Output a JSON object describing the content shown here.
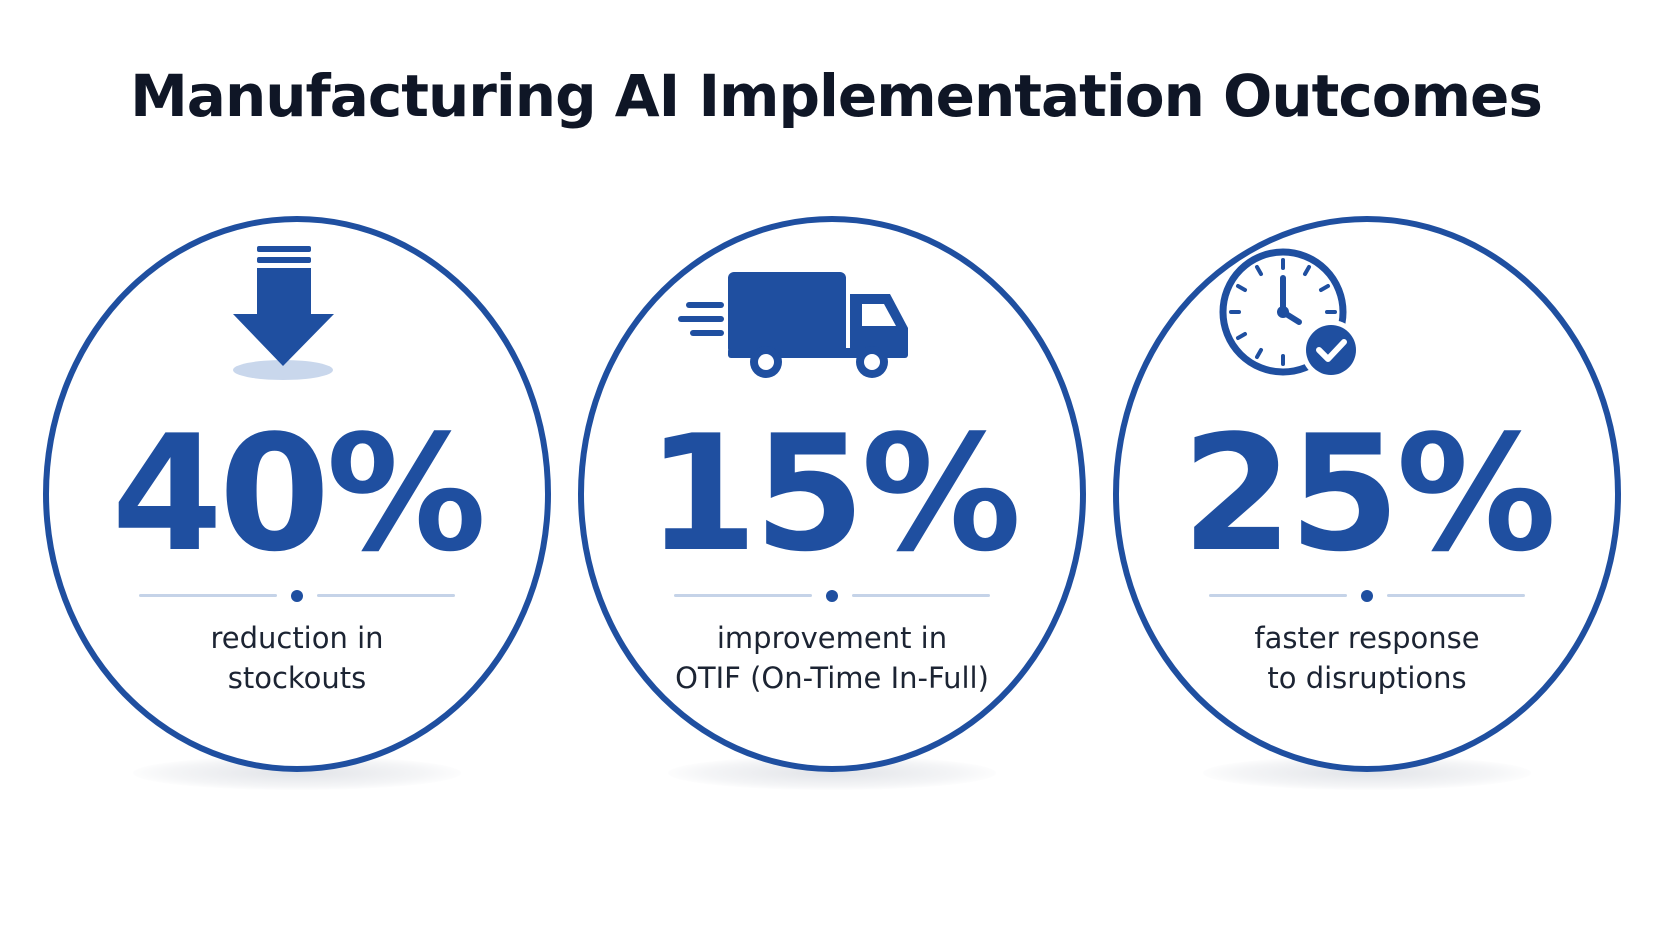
{
  "title": "Manufacturing AI Implementation Outcomes",
  "accent_color": "#1f4fa0",
  "metrics": [
    {
      "icon": "down-arrow-icon",
      "value": "40%",
      "line1": "reduction in",
      "line2": "stockouts"
    },
    {
      "icon": "delivery-truck-icon",
      "value": "15%",
      "line1": "improvement in",
      "line2": "OTIF (On-Time In-Full)"
    },
    {
      "icon": "clock-check-icon",
      "value": "25%",
      "line1": "faster response",
      "line2": "to disruptions"
    }
  ]
}
